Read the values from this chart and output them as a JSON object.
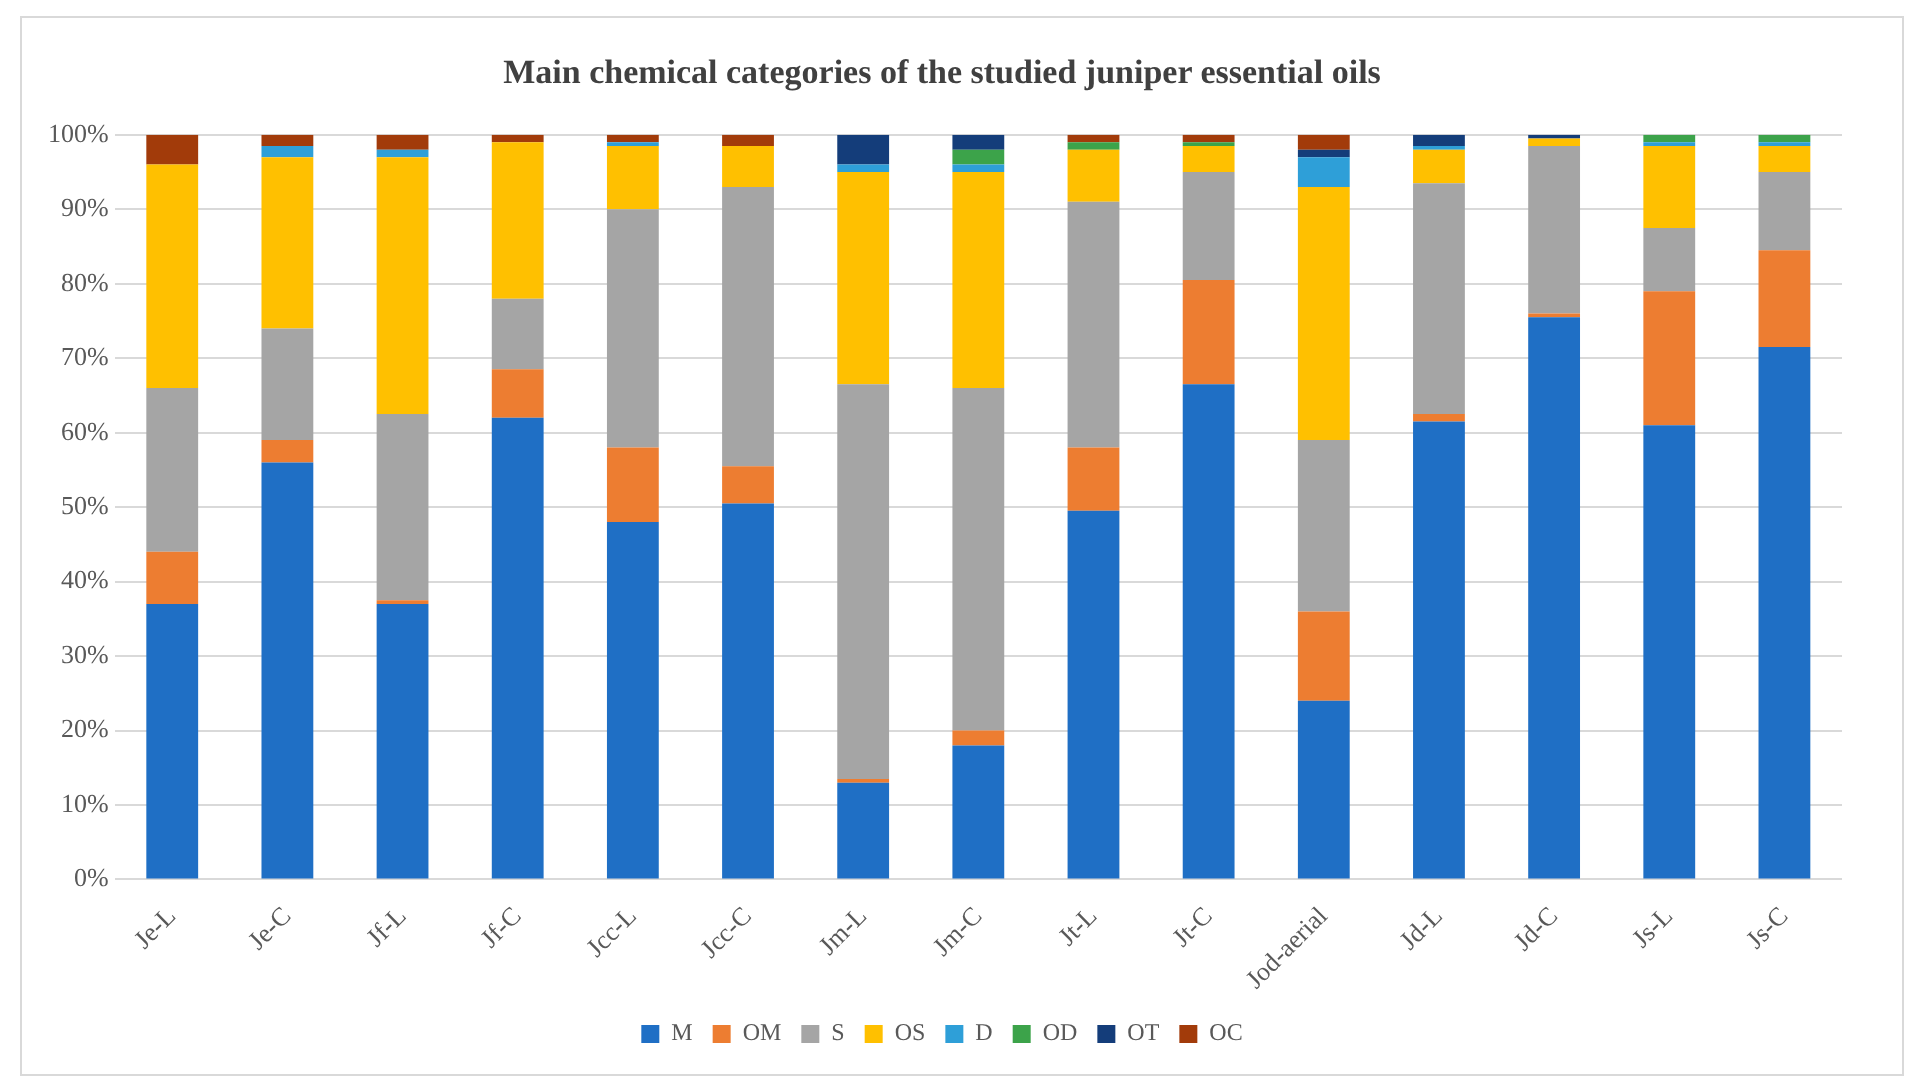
{
  "chart_data": {
    "type": "bar",
    "stacked": true,
    "title": "Main chemical categories of the studied juniper essential oils",
    "categories": [
      "Je-L",
      "Je-C",
      "Jf-L",
      "Jf-C",
      "Jcc-L",
      "Jcc-C",
      "Jm-L",
      "Jm-C",
      "Jt-L",
      "Jt-C",
      "Jod-aerial",
      "Jd-L",
      "Jd-C",
      "Js-L",
      "Js-C"
    ],
    "series": [
      {
        "name": "M",
        "color": "#1f6fc5",
        "values": [
          37,
          56,
          37,
          62,
          48,
          50.5,
          13,
          18,
          49.5,
          66.5,
          24,
          61.5,
          75.5,
          61,
          71.5
        ]
      },
      {
        "name": "OM",
        "color": "#ed7d31",
        "values": [
          7,
          3,
          0.5,
          6.5,
          10,
          5,
          0.5,
          2,
          8.5,
          14,
          12,
          1,
          0.5,
          18,
          13
        ]
      },
      {
        "name": "S",
        "color": "#a5a5a5",
        "values": [
          22,
          15,
          25,
          9.5,
          32,
          37.5,
          53,
          46,
          33,
          14.5,
          23,
          31,
          22.5,
          8.5,
          10.5
        ]
      },
      {
        "name": "OS",
        "color": "#ffc000",
        "values": [
          30,
          23,
          34.5,
          21,
          8.5,
          5.5,
          28.5,
          29,
          7,
          3.5,
          34,
          4.5,
          1,
          11,
          3.5
        ]
      },
      {
        "name": "D",
        "color": "#2e9fd8",
        "values": [
          0,
          1.5,
          1,
          0,
          0.5,
          0,
          1,
          1,
          0,
          0,
          4,
          0.5,
          0,
          0.5,
          0.5
        ]
      },
      {
        "name": "OD",
        "color": "#3ca34a",
        "values": [
          0,
          0,
          0,
          0,
          0,
          0,
          0,
          2,
          1,
          0.5,
          0,
          0,
          0,
          1,
          1
        ]
      },
      {
        "name": "OT",
        "color": "#143d7a",
        "values": [
          0,
          0,
          0,
          0,
          0,
          0,
          4,
          2,
          0,
          0,
          1,
          1.5,
          0.5,
          0,
          0
        ]
      },
      {
        "name": "OC",
        "color": "#a23b0a",
        "values": [
          4,
          1.5,
          2,
          1,
          1,
          1.5,
          0,
          0,
          1,
          1,
          2,
          0,
          0,
          0,
          0
        ]
      }
    ],
    "ylim": [
      0,
      100
    ],
    "yticks": [
      {
        "value": 0,
        "label": "0%"
      },
      {
        "value": 10,
        "label": "10%"
      },
      {
        "value": 20,
        "label": "20%"
      },
      {
        "value": 30,
        "label": "30%"
      },
      {
        "value": 40,
        "label": "40%"
      },
      {
        "value": 50,
        "label": "50%"
      },
      {
        "value": 60,
        "label": "60%"
      },
      {
        "value": 70,
        "label": "70%"
      },
      {
        "value": 80,
        "label": "80%"
      },
      {
        "value": 90,
        "label": "90%"
      },
      {
        "value": 100,
        "label": "100%"
      }
    ],
    "grid": "y",
    "legend": "bottom"
  }
}
